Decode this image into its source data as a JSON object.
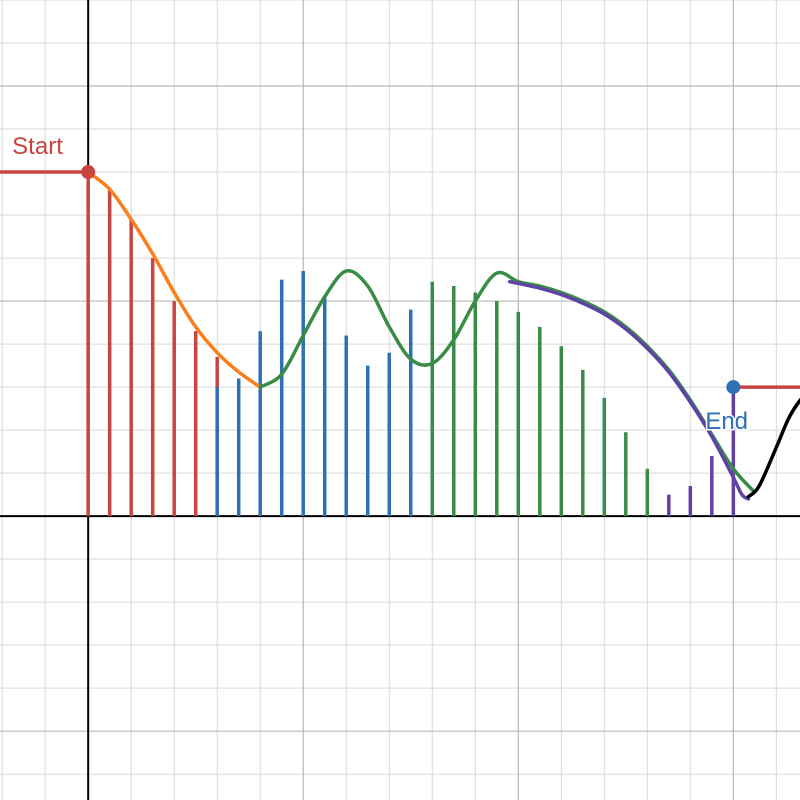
{
  "chart_data": {
    "type": "line",
    "title": "",
    "xlabel": "",
    "ylabel": "",
    "xlim": [
      -2.05,
      16.55
    ],
    "ylim": [
      -6.6,
      12.0
    ],
    "grid": true,
    "grid_minor_step": 1,
    "grid_major_step": 5,
    "start_point": {
      "label": "Start",
      "x": 0,
      "y": 8,
      "color": "#c74440"
    },
    "end_point": {
      "label": "End",
      "x": 15,
      "y": 3,
      "color": "#2d70b3"
    },
    "left_ray": {
      "y": 8,
      "color": "#c74440"
    },
    "right_ray": {
      "y": 3,
      "color": "#c74440"
    },
    "curve_segments": [
      {
        "color": "#fa7e19",
        "points": [
          [
            0,
            8
          ],
          [
            0.5,
            7.6
          ],
          [
            1,
            6.9
          ],
          [
            1.5,
            6.1
          ],
          [
            2,
            5.2
          ],
          [
            2.5,
            4.4
          ],
          [
            3,
            3.8
          ],
          [
            3.5,
            3.35
          ],
          [
            4,
            3.0
          ]
        ]
      },
      {
        "color": "#388c46",
        "points": [
          [
            4,
            3.0
          ],
          [
            4.5,
            3.3
          ],
          [
            5,
            4.2
          ],
          [
            5.5,
            5.1
          ],
          [
            6,
            5.7
          ],
          [
            6.5,
            5.35
          ],
          [
            7,
            4.4
          ],
          [
            7.5,
            3.65
          ],
          [
            8,
            3.55
          ],
          [
            8.5,
            4.1
          ],
          [
            9,
            5.0
          ],
          [
            9.5,
            5.65
          ],
          [
            10,
            5.45
          ],
          [
            10.5,
            5.35
          ],
          [
            11,
            5.2
          ],
          [
            11.5,
            5.0
          ],
          [
            12,
            4.75
          ],
          [
            12.5,
            4.4
          ],
          [
            13,
            3.95
          ],
          [
            13.5,
            3.4
          ],
          [
            14,
            2.7
          ],
          [
            14.5,
            1.9
          ],
          [
            15,
            1.1
          ],
          [
            15.45,
            0.6
          ]
        ]
      },
      {
        "color": "#6042a6",
        "points": [
          [
            9.8,
            5.45
          ],
          [
            10.5,
            5.3
          ],
          [
            11,
            5.15
          ],
          [
            11.5,
            4.95
          ],
          [
            12,
            4.7
          ],
          [
            12.5,
            4.35
          ],
          [
            13,
            3.9
          ],
          [
            13.5,
            3.35
          ],
          [
            14,
            2.65
          ],
          [
            14.5,
            1.85
          ],
          [
            15,
            0.9
          ],
          [
            15.2,
            0.5
          ],
          [
            15.35,
            0.4
          ]
        ]
      },
      {
        "color": "#000000",
        "points": [
          [
            15.35,
            0.45
          ],
          [
            15.6,
            0.7
          ],
          [
            16,
            1.6
          ],
          [
            16.3,
            2.3
          ],
          [
            16.6,
            2.75
          ],
          [
            16.9,
            3.0
          ]
        ]
      }
    ],
    "bars": [
      {
        "color": "#c74440",
        "x": [
          0,
          0.5,
          1,
          1.5,
          2,
          2.5,
          3
        ],
        "values": [
          8,
          7.6,
          6.9,
          6.0,
          5.0,
          4.3,
          3.7
        ]
      },
      {
        "color": "#2d70b3",
        "x": [
          3,
          3.5,
          4,
          4.5,
          5,
          5.5,
          6,
          6.5,
          7,
          7.5
        ],
        "values": [
          3.0,
          3.2,
          4.3,
          5.5,
          5.7,
          5.1,
          4.2,
          3.5,
          3.8,
          4.8
        ]
      },
      {
        "color": "#388c46",
        "x": [
          8,
          8.5,
          9,
          9.5,
          10,
          10.5,
          11,
          11.5,
          12,
          12.5,
          13
        ],
        "values": [
          5.45,
          5.35,
          5.2,
          5.0,
          4.75,
          4.4,
          3.95,
          3.4,
          2.75,
          1.95,
          1.1
        ]
      },
      {
        "color": "#6042a6",
        "x": [
          13.5,
          14,
          14.5,
          15
        ],
        "values": [
          0.5,
          0.7,
          1.4,
          3.0
        ]
      }
    ]
  }
}
